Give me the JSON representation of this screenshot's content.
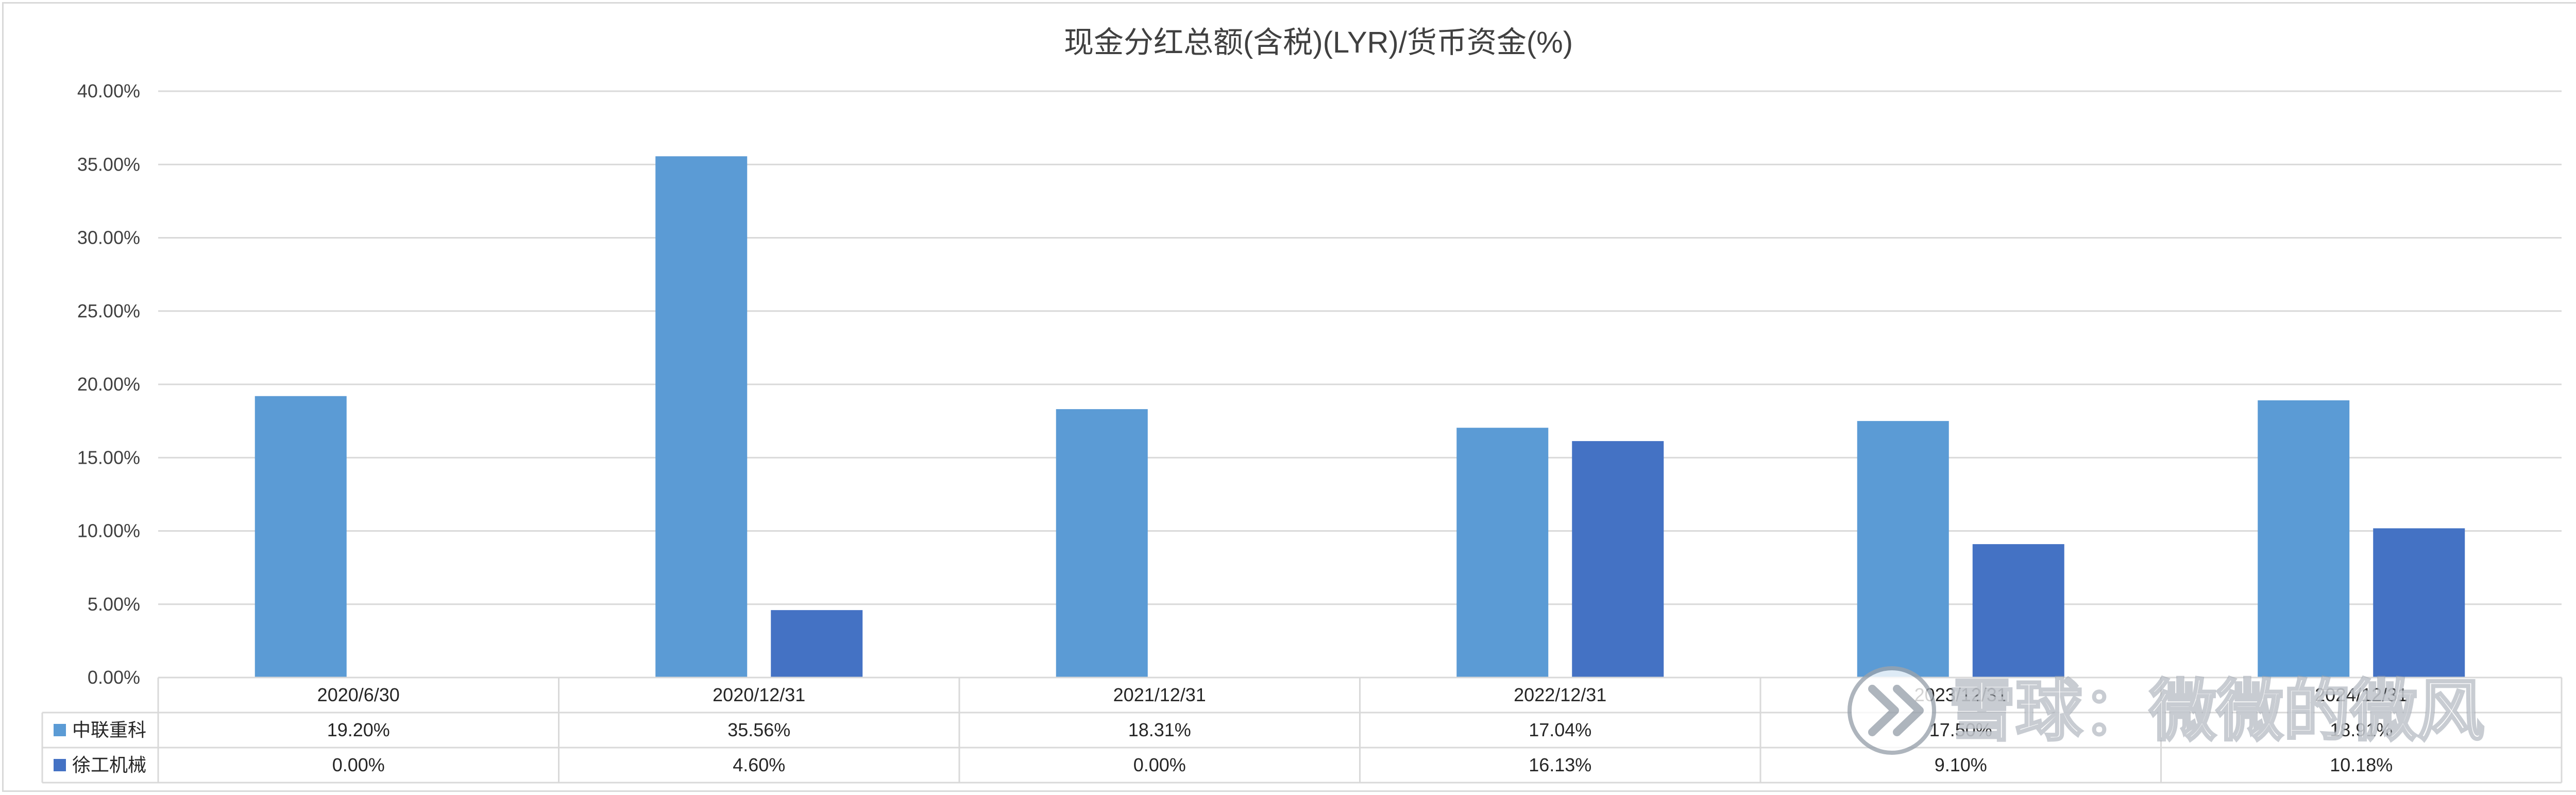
{
  "chart_data": {
    "type": "bar",
    "title": "现金分红总额(含税)(LYR)/货币资金(%)",
    "categories": [
      "2020/6/30",
      "2020/12/31",
      "2021/12/31",
      "2022/12/31",
      "2023/12/31",
      "2024/12/31"
    ],
    "series": [
      {
        "name": "中联重科",
        "values": [
          19.2,
          35.56,
          18.31,
          17.04,
          17.5,
          18.91
        ],
        "labels": [
          "19.20%",
          "35.56%",
          "18.31%",
          "17.04%",
          "17.50%",
          "18.91%"
        ],
        "color": "#5b9bd5"
      },
      {
        "name": "徐工机械",
        "values": [
          0.0,
          4.6,
          0.0,
          16.13,
          9.1,
          10.18
        ],
        "labels": [
          "0.00%",
          "4.60%",
          "0.00%",
          "16.13%",
          "9.10%",
          "10.18%"
        ],
        "color": "#4472c4"
      }
    ],
    "ylim": [
      0,
      40
    ],
    "yticks": [
      "0.00%",
      "5.00%",
      "10.00%",
      "15.00%",
      "20.00%",
      "25.00%",
      "30.00%",
      "35.00%",
      "40.00%"
    ],
    "ytick_values": [
      0,
      5,
      10,
      15,
      20,
      25,
      30,
      35,
      40
    ],
    "grid": true,
    "legend": "data-table-left"
  },
  "watermark": {
    "text": "雪球：微微的微风",
    "logo": "xueqiu-logo-icon"
  }
}
